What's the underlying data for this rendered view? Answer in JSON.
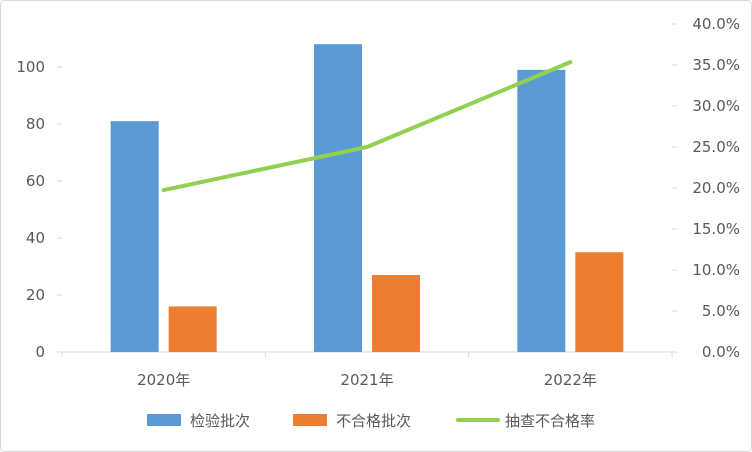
{
  "chart_data": {
    "type": "bar+line",
    "title": "",
    "categories": [
      "2020年",
      "2021年",
      "2022年"
    ],
    "series": [
      {
        "name": "检验批次",
        "type": "bar",
        "axis": "left",
        "color": "#5B9BD5",
        "values": [
          81,
          108,
          99
        ]
      },
      {
        "name": "不合格批次",
        "type": "bar",
        "axis": "left",
        "color": "#ED7D31",
        "values": [
          16,
          27,
          35
        ]
      },
      {
        "name": "抽查不合格率",
        "type": "line",
        "axis": "right",
        "color": "#92D050",
        "values": [
          19.75,
          25.0,
          35.35
        ]
      }
    ],
    "left_axis": {
      "ylim": [
        0,
        115
      ],
      "ticks": [
        0,
        20,
        40,
        60,
        80,
        100
      ],
      "tick_labels": [
        "0",
        "20",
        "40",
        "60",
        "80",
        "100"
      ]
    },
    "right_axis": {
      "ylim": [
        0,
        40
      ],
      "ticks": [
        0,
        5,
        10,
        15,
        20,
        25,
        30,
        35,
        40
      ],
      "tick_labels": [
        "0.0%",
        "5.0%",
        "10.0%",
        "15.0%",
        "20.0%",
        "25.0%",
        "30.0%",
        "35.0%",
        "40.0%"
      ]
    },
    "grid": false,
    "legend": "bottom"
  }
}
